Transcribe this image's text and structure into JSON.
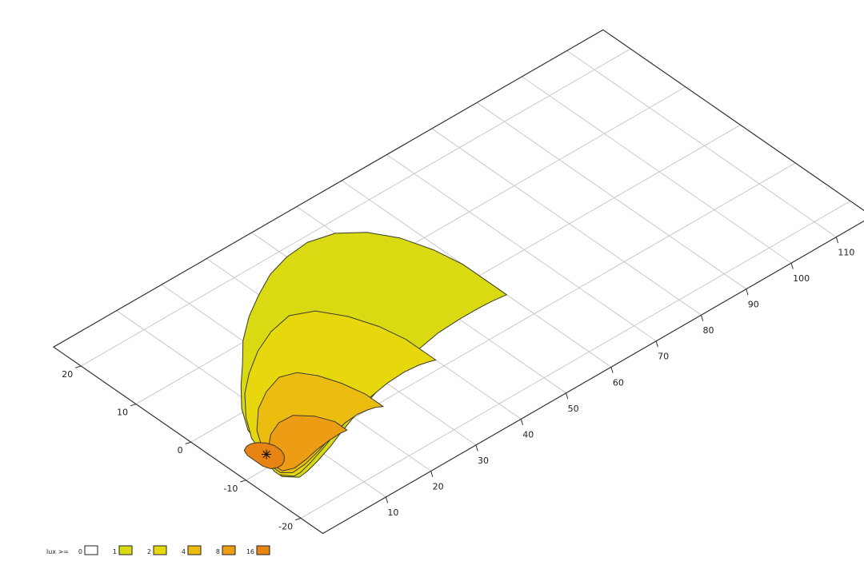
{
  "chart_data": {
    "type": "heatmap",
    "title": "",
    "xlabel": "",
    "ylabel": "",
    "x_ticks": [
      10,
      20,
      30,
      40,
      50,
      60,
      70,
      80,
      90,
      100,
      110
    ],
    "y_ticks": [
      -20,
      -10,
      0,
      10,
      20
    ],
    "xlim": [
      -4,
      118
    ],
    "ylim": [
      -24,
      25
    ],
    "grid": true,
    "luminaire": {
      "x": 3,
      "y": -8
    },
    "contour_levels": [
      1,
      2,
      4,
      8,
      16
    ],
    "contours": [
      {
        "lux": 1,
        "color": "#d9da12",
        "rows": [
          [
            1,
            -12.5,
            -11.3
          ],
          [
            3,
            -14,
            -8
          ],
          [
            5,
            -13.8,
            -3
          ],
          [
            8,
            -13.2,
            0.6
          ],
          [
            12,
            -12.2,
            4
          ],
          [
            16,
            -11,
            7
          ],
          [
            20,
            -9.9,
            10.2
          ],
          [
            25,
            -8.7,
            13.2
          ],
          [
            30,
            -7.5,
            15.5
          ],
          [
            35,
            -6.5,
            17.5
          ],
          [
            40,
            -5.5,
            18.6
          ],
          [
            45,
            -4.8,
            19
          ],
          [
            50,
            -4.6,
            18
          ],
          [
            54,
            -4.6,
            15.5
          ],
          [
            57,
            -4.7,
            12
          ],
          [
            59,
            -4.9,
            7.5
          ],
          [
            60,
            -5,
            3
          ]
        ]
      },
      {
        "lux": 2,
        "color": "#e6d80c",
        "rows": [
          [
            1,
            -12,
            -11
          ],
          [
            2.5,
            -13.4,
            -8
          ],
          [
            4,
            -13.4,
            -4.5
          ],
          [
            7,
            -12.8,
            -1
          ],
          [
            11,
            -11.8,
            2.5
          ],
          [
            15,
            -10.7,
            5
          ],
          [
            20,
            -9.5,
            7.5
          ],
          [
            25,
            -8.5,
            9.2
          ],
          [
            30,
            -7.8,
            10
          ],
          [
            34,
            -7.6,
            8.5
          ],
          [
            37,
            -7.8,
            5
          ],
          [
            39,
            -8.2,
            1
          ],
          [
            40,
            -8.5,
            -3
          ]
        ]
      },
      {
        "lux": 4,
        "color": "#ecbd10",
        "rows": [
          [
            1.5,
            -11.8,
            -10.5
          ],
          [
            3,
            -12.8,
            -7.5
          ],
          [
            6,
            -12.6,
            -3.8
          ],
          [
            10,
            -11.8,
            -0.8
          ],
          [
            14,
            -10.8,
            1
          ],
          [
            18,
            -10,
            2
          ],
          [
            21,
            -9.8,
            1.2
          ],
          [
            23,
            -10,
            -1
          ],
          [
            24.5,
            -10.3,
            -4
          ],
          [
            25.5,
            -10.8,
            -7.5
          ]
        ]
      },
      {
        "lux": 8,
        "color": "#ec9d13",
        "rows": [
          [
            2,
            -11.7,
            -10
          ],
          [
            4,
            -12.3,
            -7.5
          ],
          [
            7,
            -12,
            -5.5
          ],
          [
            10,
            -11.5,
            -4.5
          ],
          [
            13,
            -11.2,
            -4.6
          ],
          [
            15.5,
            -11.1,
            -6.5
          ],
          [
            17,
            -11.2,
            -9
          ]
        ]
      },
      {
        "lux": 16,
        "color": "#e88414",
        "rows": [
          [
            0.5,
            -9.4,
            -6.6
          ],
          [
            1,
            -10.4,
            -5.6
          ],
          [
            2,
            -10.8,
            -5.2
          ],
          [
            3,
            -10.8,
            -5.2
          ],
          [
            4,
            -10.4,
            -5.6
          ],
          [
            5,
            -9.6,
            -6.4
          ],
          [
            5.5,
            -8.6,
            -7.4
          ]
        ]
      }
    ],
    "legend": {
      "title": "lux >=",
      "position": "bottom-left",
      "entries": [
        {
          "label": "0",
          "color": "#ffffff"
        },
        {
          "label": "1",
          "color": "#d9da12"
        },
        {
          "label": "2",
          "color": "#e6d80c"
        },
        {
          "label": "4",
          "color": "#ecbd10"
        },
        {
          "label": "8",
          "color": "#ec9d13"
        },
        {
          "label": "16",
          "color": "#e88414"
        }
      ]
    }
  }
}
